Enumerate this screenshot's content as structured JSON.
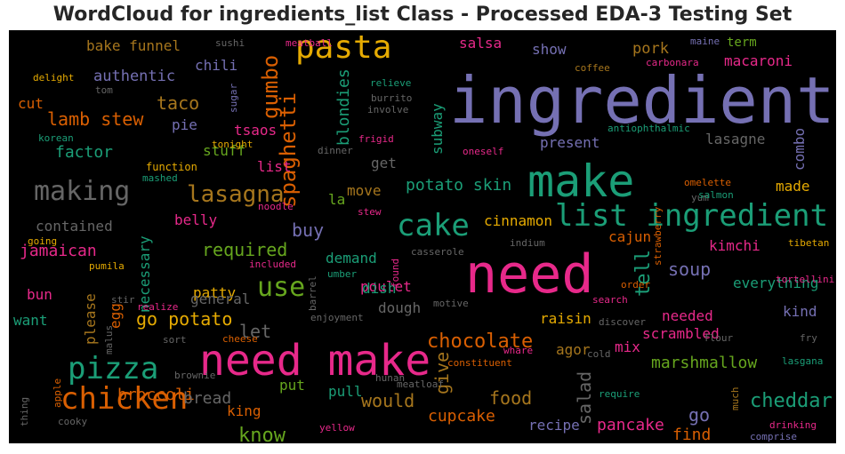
{
  "chart_data": {
    "type": "wordcloud",
    "title": "WordCloud for ingredients_list Class - Processed EDA-3 Testing Set",
    "background": "#000000",
    "palette": "Dark2",
    "words": [
      {
        "text": "ingredient",
        "color": "#7570b3"
      },
      {
        "text": "need make",
        "color": "#e7298a"
      },
      {
        "text": "make",
        "color": "#1b9e77"
      },
      {
        "text": "need",
        "color": "#e7298a"
      },
      {
        "text": "list ingredient",
        "color": "#1b9e77"
      },
      {
        "text": "pasta",
        "color": "#e6ab02"
      },
      {
        "text": "chicken",
        "color": "#d95f02"
      },
      {
        "text": "pizza",
        "color": "#1b9e77"
      },
      {
        "text": "cake",
        "color": "#1b9e77"
      },
      {
        "text": "making",
        "color": "#666666"
      },
      {
        "text": "lasagna",
        "color": "#a6761d"
      },
      {
        "text": "spaghetti",
        "color": "#d95f02"
      },
      {
        "text": "gumbo",
        "color": "#d95f02"
      },
      {
        "text": "use",
        "color": "#66a61e"
      },
      {
        "text": "chocolate",
        "color": "#d95f02"
      },
      {
        "text": "lamb stew",
        "color": "#d95f02"
      },
      {
        "text": "go potato",
        "color": "#e6ab02"
      },
      {
        "text": "cheddar",
        "color": "#1b9e77"
      },
      {
        "text": "know",
        "color": "#66a61e"
      },
      {
        "text": "tell",
        "color": "#1b9e77"
      },
      {
        "text": "potato skin",
        "color": "#1b9e77"
      },
      {
        "text": "required",
        "color": "#66a61e"
      },
      {
        "text": "taco",
        "color": "#a6761d"
      },
      {
        "text": "salad",
        "color": "#666666"
      },
      {
        "text": "blondies",
        "color": "#1b9e77"
      },
      {
        "text": "would",
        "color": "#a6761d"
      },
      {
        "text": "give",
        "color": "#a6761d"
      },
      {
        "text": "food",
        "color": "#a6761d"
      },
      {
        "text": "cupcake",
        "color": "#d95f02"
      },
      {
        "text": "pancake",
        "color": "#e7298a"
      },
      {
        "text": "factor",
        "color": "#1b9e77"
      },
      {
        "text": "jamaican",
        "color": "#e7298a"
      },
      {
        "text": "broccoli",
        "color": "#d95f02"
      },
      {
        "text": "soup",
        "color": "#7570b3"
      },
      {
        "text": "buy",
        "color": "#7570b3"
      },
      {
        "text": "let",
        "color": "#666666"
      },
      {
        "text": "bread",
        "color": "#666666"
      },
      {
        "text": "marshmallow",
        "color": "#66a61e"
      },
      {
        "text": "go",
        "color": "#7570b3"
      },
      {
        "text": "find",
        "color": "#d95f02"
      },
      {
        "text": "authentic",
        "color": "#7570b3"
      },
      {
        "text": "bake funnel",
        "color": "#a6761d"
      },
      {
        "text": "pork",
        "color": "#a6761d"
      },
      {
        "text": "salsa",
        "color": "#e7298a"
      },
      {
        "text": "macaroni",
        "color": "#e7298a"
      },
      {
        "text": "chili",
        "color": "#7570b3"
      },
      {
        "text": "cut",
        "color": "#d95f02"
      },
      {
        "text": "pie",
        "color": "#7570b3"
      },
      {
        "text": "tsaos",
        "color": "#e7298a"
      },
      {
        "text": "stuff",
        "color": "#66a61e"
      },
      {
        "text": "contained",
        "color": "#666666"
      },
      {
        "text": "belly",
        "color": "#e7298a"
      },
      {
        "text": "patty",
        "color": "#e6ab02"
      },
      {
        "text": "demand",
        "color": "#1b9e77"
      },
      {
        "text": "necessary",
        "color": "#1b9e77"
      },
      {
        "text": "general",
        "color": "#666666"
      },
      {
        "text": "please",
        "color": "#a6761d"
      },
      {
        "text": "bun",
        "color": "#e7298a"
      },
      {
        "text": "want",
        "color": "#1b9e77"
      },
      {
        "text": "egg",
        "color": "#d95f02"
      },
      {
        "text": "put",
        "color": "#66a61e"
      },
      {
        "text": "king",
        "color": "#d95f02"
      },
      {
        "text": "pull",
        "color": "#1b9e77"
      },
      {
        "text": "dough",
        "color": "#666666"
      },
      {
        "text": "poulet",
        "color": "#e7298a"
      },
      {
        "text": "dish",
        "color": "#1b9e77"
      },
      {
        "text": "move",
        "color": "#a6761d"
      },
      {
        "text": "la",
        "color": "#66a61e"
      },
      {
        "text": "get",
        "color": "#666666"
      },
      {
        "text": "list",
        "color": "#e7298a"
      },
      {
        "text": "subway",
        "color": "#1b9e77"
      },
      {
        "text": "cinnamon",
        "color": "#e6ab02"
      },
      {
        "text": "cajun",
        "color": "#d95f02"
      },
      {
        "text": "kimchi",
        "color": "#e7298a"
      },
      {
        "text": "lasagne",
        "color": "#666666"
      },
      {
        "text": "combo",
        "color": "#7570b3"
      },
      {
        "text": "made",
        "color": "#e6ab02"
      },
      {
        "text": "present",
        "color": "#7570b3"
      },
      {
        "text": "everything",
        "color": "#1b9e77"
      },
      {
        "text": "kind",
        "color": "#7570b3"
      },
      {
        "text": "needed",
        "color": "#e7298a"
      },
      {
        "text": "scrambled",
        "color": "#e7298a"
      },
      {
        "text": "raisin",
        "color": "#e6ab02"
      },
      {
        "text": "mix",
        "color": "#e7298a"
      },
      {
        "text": "agor",
        "color": "#a6761d"
      },
      {
        "text": "recipe",
        "color": "#7570b3"
      },
      {
        "text": "show",
        "color": "#7570b3"
      },
      {
        "text": "term",
        "color": "#66a61e"
      },
      {
        "text": "frigid",
        "color": "#e7298a"
      },
      {
        "text": "dinner",
        "color": "#666666"
      },
      {
        "text": "function",
        "color": "#e6ab02"
      },
      {
        "text": "tonight",
        "color": "#e6ab02"
      },
      {
        "text": "mashed",
        "color": "#1b9e77"
      },
      {
        "text": "noodle",
        "color": "#e7298a"
      },
      {
        "text": "going",
        "color": "#e6ab02"
      },
      {
        "text": "pumila",
        "color": "#e6ab02"
      },
      {
        "text": "realize",
        "color": "#e7298a"
      },
      {
        "text": "malus",
        "color": "#666666"
      },
      {
        "text": "stir",
        "color": "#666666"
      },
      {
        "text": "sort",
        "color": "#666666"
      },
      {
        "text": "cheese",
        "color": "#d95f02"
      },
      {
        "text": "brownie",
        "color": "#666666"
      },
      {
        "text": "hunan",
        "color": "#666666"
      },
      {
        "text": "meatloaf",
        "color": "#666666"
      },
      {
        "text": "constituent",
        "color": "#d95f02"
      },
      {
        "text": "whare",
        "color": "#e7298a"
      },
      {
        "text": "cold",
        "color": "#666666"
      },
      {
        "text": "flour",
        "color": "#666666"
      },
      {
        "text": "fry",
        "color": "#666666"
      },
      {
        "text": "lasgana",
        "color": "#1b9e77"
      },
      {
        "text": "require",
        "color": "#1b9e77"
      },
      {
        "text": "much",
        "color": "#a6761d"
      },
      {
        "text": "drinking",
        "color": "#e7298a"
      },
      {
        "text": "comprise",
        "color": "#7570b3"
      },
      {
        "text": "apple",
        "color": "#d95f02"
      },
      {
        "text": "thing",
        "color": "#666666"
      },
      {
        "text": "cooky",
        "color": "#666666"
      },
      {
        "text": "yellow",
        "color": "#e7298a"
      },
      {
        "text": "sushi",
        "color": "#666666"
      },
      {
        "text": "meatball",
        "color": "#e7298a"
      },
      {
        "text": "coffee",
        "color": "#a6761d"
      },
      {
        "text": "carbonara",
        "color": "#e7298a"
      },
      {
        "text": "maine",
        "color": "#7570b3"
      },
      {
        "text": "delight",
        "color": "#e6ab02"
      },
      {
        "text": "tom",
        "color": "#666666"
      },
      {
        "text": "sugar",
        "color": "#7570b3"
      },
      {
        "text": "burrito",
        "color": "#666666"
      },
      {
        "text": "relieve",
        "color": "#1b9e77"
      },
      {
        "text": "involve",
        "color": "#666666"
      },
      {
        "text": "korean",
        "color": "#1b9e77"
      },
      {
        "text": "oneself",
        "color": "#e7298a"
      },
      {
        "text": "antiophthalmic",
        "color": "#1b9e77"
      },
      {
        "text": "omelette",
        "color": "#d95f02"
      },
      {
        "text": "yum",
        "color": "#666666"
      },
      {
        "text": "salmon",
        "color": "#1b9e77"
      },
      {
        "text": "stew",
        "color": "#e7298a"
      },
      {
        "text": "indium",
        "color": "#666666"
      },
      {
        "text": "casserole",
        "color": "#666666"
      },
      {
        "text": "umber",
        "color": "#1b9e77"
      },
      {
        "text": "found",
        "color": "#e7298a"
      },
      {
        "text": "barrel",
        "color": "#666666"
      },
      {
        "text": "enjoyment",
        "color": "#666666"
      },
      {
        "text": "motive",
        "color": "#666666"
      },
      {
        "text": "included",
        "color": "#e7298a"
      },
      {
        "text": "strawberry",
        "color": "#d95f02"
      },
      {
        "text": "tibetan",
        "color": "#e6ab02"
      },
      {
        "text": "tortellini",
        "color": "#e7298a"
      },
      {
        "text": "order",
        "color": "#d95f02"
      },
      {
        "text": "search",
        "color": "#e7298a"
      },
      {
        "text": "discover",
        "color": "#666666"
      }
    ]
  }
}
